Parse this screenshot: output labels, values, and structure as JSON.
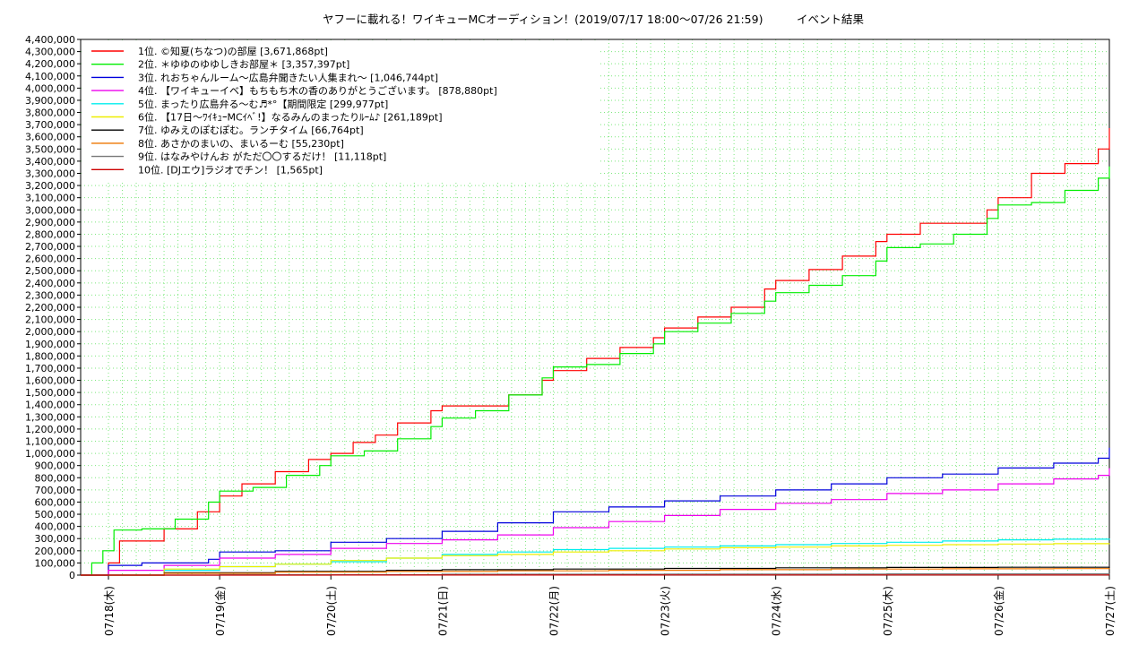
{
  "chart_data": {
    "type": "line",
    "title": "ヤフーに載れる！ワイキューMCオーディション！(2019/07/17 18:00～07/26 21:59)　　　イベント結果",
    "xlabel": "",
    "ylabel": "",
    "ylim": [
      0,
      4400000
    ],
    "y_tick_step": 100000,
    "y_tick_labels": [
      "0",
      "100,000",
      "200,000",
      "300,000",
      "400,000",
      "500,000",
      "600,000",
      "700,000",
      "800,000",
      "900,000",
      "1,000,000",
      "1,100,000",
      "1,200,000",
      "1,300,000",
      "1,400,000",
      "1,500,000",
      "1,600,000",
      "1,700,000",
      "1,800,000",
      "1,900,000",
      "2,000,000",
      "2,100,000",
      "2,200,000",
      "2,300,000",
      "2,400,000",
      "2,500,000",
      "2,600,000",
      "2,700,000",
      "2,800,000",
      "2,900,000",
      "3,000,000",
      "3,100,000",
      "3,200,000",
      "3,300,000",
      "3,400,000",
      "3,500,000",
      "3,600,000",
      "3,700,000",
      "3,800,000",
      "3,900,000",
      "4,000,000",
      "4,100,000",
      "4,200,000",
      "4,300,000",
      "4,400,000"
    ],
    "x_tick_labels": [
      "07/18(木)",
      "07/19(金)",
      "07/20(土)",
      "07/21(日)",
      "07/22(月)",
      "07/23(火)",
      "07/24(水)",
      "07/25(木)",
      "07/26(金)",
      "07/27(土)"
    ],
    "x_day_range": [
      17.75,
      27.0
    ],
    "grid": true,
    "legend_position": "top-left",
    "series": [
      {
        "name": "1位. ©知夏(ちなつ)の部屋 [3,671,868pt]",
        "color": "#ff0000",
        "x": [
          17.75,
          18.0,
          18.1,
          18.3,
          18.5,
          18.8,
          19.0,
          19.2,
          19.5,
          19.8,
          20.0,
          20.2,
          20.4,
          20.6,
          20.9,
          21.0,
          21.3,
          21.6,
          21.9,
          22.0,
          22.3,
          22.6,
          22.9,
          23.0,
          23.3,
          23.6,
          23.9,
          24.0,
          24.3,
          24.6,
          24.9,
          25.0,
          25.3,
          25.6,
          25.9,
          26.0,
          26.3,
          26.6,
          26.9,
          27.0
        ],
        "y": [
          0,
          100000,
          280000,
          280000,
          380000,
          520000,
          650000,
          750000,
          850000,
          950000,
          1000000,
          1090000,
          1150000,
          1250000,
          1350000,
          1390000,
          1390000,
          1480000,
          1600000,
          1680000,
          1780000,
          1870000,
          1950000,
          2030000,
          2120000,
          2200000,
          2350000,
          2420000,
          2510000,
          2620000,
          2740000,
          2800000,
          2890000,
          2890000,
          3000000,
          3100000,
          3300000,
          3380000,
          3500000,
          3671868
        ]
      },
      {
        "name": "2位. ＊ゆゆのゆゆしきお部屋＊ [3,357,397pt]",
        "color": "#00ee00",
        "x": [
          17.75,
          17.85,
          17.95,
          18.05,
          18.3,
          18.6,
          18.9,
          19.0,
          19.3,
          19.6,
          19.9,
          20.0,
          20.3,
          20.6,
          20.9,
          21.0,
          21.3,
          21.6,
          21.9,
          22.0,
          22.3,
          22.6,
          22.9,
          23.0,
          23.3,
          23.6,
          23.9,
          24.0,
          24.3,
          24.6,
          24.9,
          25.0,
          25.3,
          25.6,
          25.9,
          26.0,
          26.3,
          26.6,
          26.9,
          27.0
        ],
        "y": [
          0,
          100000,
          200000,
          370000,
          380000,
          460000,
          600000,
          690000,
          720000,
          820000,
          900000,
          980000,
          1020000,
          1120000,
          1220000,
          1290000,
          1350000,
          1480000,
          1620000,
          1710000,
          1730000,
          1820000,
          1900000,
          2000000,
          2070000,
          2150000,
          2250000,
          2320000,
          2380000,
          2460000,
          2580000,
          2690000,
          2720000,
          2800000,
          2930000,
          3040000,
          3060000,
          3160000,
          3260000,
          3357397
        ]
      },
      {
        "name": "3位. れおちゃんルーム～広島弁聞きたい人集まれ～ [1,046,744pt]",
        "color": "#0000dd",
        "x": [
          17.75,
          18.0,
          18.3,
          18.6,
          18.9,
          19.0,
          19.5,
          20.0,
          20.5,
          21.0,
          21.5,
          22.0,
          22.5,
          23.0,
          23.5,
          24.0,
          24.5,
          25.0,
          25.5,
          26.0,
          26.5,
          26.9,
          27.0
        ],
        "y": [
          0,
          80000,
          100000,
          100000,
          130000,
          190000,
          200000,
          270000,
          300000,
          360000,
          430000,
          520000,
          560000,
          610000,
          650000,
          700000,
          750000,
          800000,
          830000,
          880000,
          920000,
          960000,
          1046744
        ]
      },
      {
        "name": "4位. 【ワイキューイベ】もちもち木の香のありがとうございます。 [878,880pt]",
        "color": "#ee00ee",
        "x": [
          17.75,
          18.0,
          18.5,
          19.0,
          19.5,
          20.0,
          20.5,
          21.0,
          21.5,
          22.0,
          22.5,
          23.0,
          23.5,
          24.0,
          24.5,
          25.0,
          25.5,
          26.0,
          26.5,
          26.9,
          27.0
        ],
        "y": [
          0,
          40000,
          80000,
          140000,
          170000,
          220000,
          260000,
          290000,
          330000,
          390000,
          440000,
          490000,
          540000,
          590000,
          620000,
          670000,
          700000,
          750000,
          790000,
          820000,
          878880
        ]
      },
      {
        "name": "5位. まったり広島弁る～む♬*°【期間限定 [299,977pt]",
        "color": "#00eeee",
        "x": [
          17.75,
          18.5,
          19.0,
          19.5,
          20.0,
          20.5,
          21.0,
          21.5,
          22.0,
          22.5,
          23.0,
          23.5,
          24.0,
          24.5,
          25.0,
          25.5,
          26.0,
          26.5,
          27.0
        ],
        "y": [
          0,
          40000,
          70000,
          90000,
          110000,
          140000,
          170000,
          190000,
          210000,
          220000,
          230000,
          240000,
          250000,
          260000,
          270000,
          280000,
          290000,
          295000,
          299977
        ]
      },
      {
        "name": "6位. 【17日～ﾜｲｷｭｰMCｲﾍﾞ!】なるみんのまったりﾙｰﾑ♪ [261,189pt]",
        "color": "#eeee00",
        "x": [
          17.75,
          18.5,
          19.0,
          19.5,
          20.0,
          20.5,
          21.0,
          21.5,
          22.0,
          22.5,
          23.0,
          23.5,
          24.0,
          24.5,
          25.0,
          25.5,
          26.0,
          26.5,
          27.0
        ],
        "y": [
          0,
          50000,
          70000,
          90000,
          120000,
          140000,
          160000,
          170000,
          190000,
          200000,
          215000,
          225000,
          230000,
          240000,
          245000,
          250000,
          255000,
          258000,
          261189
        ]
      },
      {
        "name": "7位. ゆみえのぽむぽむ。ランチタイム [66,764pt]",
        "color": "#000000",
        "x": [
          17.75,
          18.5,
          19.5,
          20.5,
          21.0,
          22.0,
          23.0,
          24.0,
          25.0,
          26.0,
          27.0
        ],
        "y": [
          0,
          20000,
          30000,
          40000,
          45000,
          50000,
          55000,
          60000,
          63000,
          65000,
          66764
        ]
      },
      {
        "name": "8位. あさかのまいの、まいるーむ [55,230pt]",
        "color": "#ee7700",
        "x": [
          17.75,
          18.5,
          19.5,
          20.5,
          21.5,
          22.5,
          23.5,
          24.5,
          25.5,
          26.5,
          27.0
        ],
        "y": [
          0,
          15000,
          25000,
          30000,
          35000,
          40000,
          45000,
          50000,
          52000,
          54000,
          55230
        ]
      },
      {
        "name": "9位. はなみやけんお がただ〇〇するだけ！ [11,118pt]",
        "color": "#777777",
        "x": [
          17.75,
          19.0,
          21.0,
          23.0,
          25.0,
          27.0
        ],
        "y": [
          0,
          4000,
          7000,
          9000,
          10500,
          11118
        ]
      },
      {
        "name": "10位. [DJエウ]ラジオでチン！ [1,565pt]",
        "color": "#cc0000",
        "x": [
          17.75,
          20.0,
          23.0,
          27.0
        ],
        "y": [
          0,
          800,
          1200,
          1565
        ]
      }
    ]
  }
}
